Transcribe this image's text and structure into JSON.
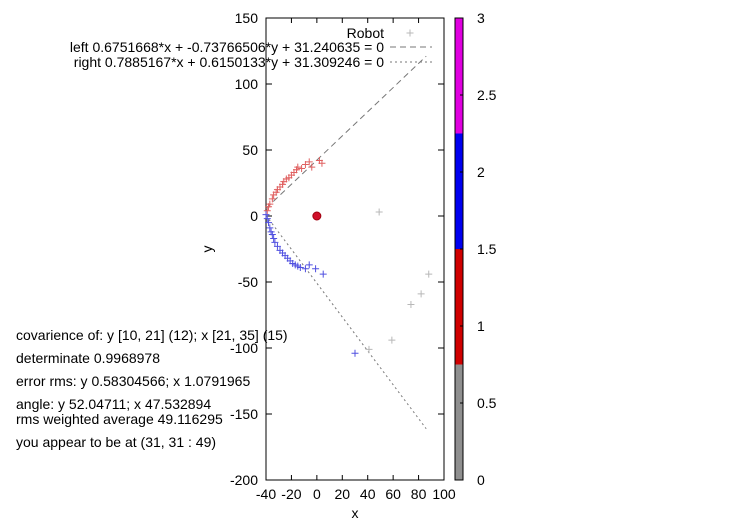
{
  "chart_data": {
    "type": "scatter",
    "xlabel": "x",
    "ylabel": "y",
    "xlim": [
      -40,
      100
    ],
    "ylim": [
      -200,
      150
    ],
    "xticks": [
      -40,
      -20,
      0,
      20,
      40,
      60,
      80,
      100
    ],
    "yticks": [
      150,
      100,
      50,
      0,
      -50,
      -100,
      -150,
      -200
    ],
    "colorbar": {
      "range": [
        0,
        3
      ],
      "ticks": [
        "3",
        "2.5",
        "2",
        "1.5",
        "1",
        "0.5",
        "0"
      ],
      "bands": [
        {
          "from": 0,
          "to": 0.75,
          "color": "#8f8f8f"
        },
        {
          "from": 0.75,
          "to": 1.5,
          "color": "#d00000"
        },
        {
          "from": 1.5,
          "to": 2.25,
          "color": "#0000f0"
        },
        {
          "from": 2.25,
          "to": 3,
          "color": "#e000e0"
        }
      ]
    },
    "legend": [
      {
        "label": "Robot",
        "style": "marker"
      },
      {
        "label": "left 0.6751668*x + -0.73766506*y + 31.240635 = 0",
        "style": "dashed"
      },
      {
        "label": "right 0.7885167*x + 0.6150133*y + 31.309246 = 0",
        "style": "dotted"
      }
    ],
    "lines": [
      {
        "name": "left",
        "a": 0.6751668,
        "b": -0.73766506,
        "c": 31.240635,
        "x_range": [
          -40,
          86
        ],
        "color": "#777777",
        "dash": "6,4"
      },
      {
        "name": "right",
        "a": 0.7885167,
        "b": 0.6150133,
        "c": 31.309246,
        "x_range": [
          -40,
          86
        ],
        "color": "#777777",
        "dash": "2,3"
      }
    ],
    "robot_point": {
      "x": 0,
      "y": 0,
      "color": "#d0102a"
    },
    "series": [
      {
        "name": "left-points",
        "color": "#e06060",
        "points": [
          [
            -39,
            4
          ],
          [
            -38,
            7
          ],
          [
            -37,
            9
          ],
          [
            -35,
            13
          ],
          [
            -34,
            16
          ],
          [
            -32,
            18
          ],
          [
            -31,
            20
          ],
          [
            -29,
            22
          ],
          [
            -27,
            24
          ],
          [
            -26,
            26
          ],
          [
            -24,
            28
          ],
          [
            -22,
            29
          ],
          [
            -20,
            31
          ],
          [
            -18,
            33
          ],
          [
            -16,
            35
          ],
          [
            -15,
            37
          ],
          [
            -12,
            36
          ],
          [
            -9,
            39
          ],
          [
            -6,
            41
          ],
          [
            -4,
            37
          ],
          [
            2,
            42
          ],
          [
            4,
            40
          ]
        ]
      },
      {
        "name": "right-points",
        "color": "#5050e0",
        "points": [
          [
            -40,
            1
          ],
          [
            -39,
            -2
          ],
          [
            -38,
            -5
          ],
          [
            -37,
            -9
          ],
          [
            -36,
            -12
          ],
          [
            -35,
            -14
          ],
          [
            -34,
            -17
          ],
          [
            -33,
            -20
          ],
          [
            -31,
            -23
          ],
          [
            -29,
            -26
          ],
          [
            -27,
            -28
          ],
          [
            -25,
            -30
          ],
          [
            -23,
            -32
          ],
          [
            -21,
            -34
          ],
          [
            -19,
            -36
          ],
          [
            -17,
            -37
          ],
          [
            -15,
            -38
          ],
          [
            -13,
            -39
          ],
          [
            -9,
            -40
          ],
          [
            -6,
            -37
          ],
          [
            -1,
            -40
          ],
          [
            5,
            -44
          ],
          [
            30,
            -104
          ]
        ]
      },
      {
        "name": "robot-other",
        "color": "#b8b8b8",
        "points": [
          [
            49,
            3
          ],
          [
            88,
            -44
          ],
          [
            82,
            -59
          ],
          [
            74,
            -67
          ],
          [
            59,
            -94
          ],
          [
            41,
            -101
          ]
        ]
      }
    ]
  },
  "info": {
    "covariance": "covarience of: y [10, 21] (12); x [21, 35] (15)",
    "determinate": "determinate 0.9968978",
    "error_rms": "error rms: y 0.58304566; x 1.0791965",
    "angle": "angle: y 52.04711; x 47.532894",
    "rms_weighted": "rms weighted average 49.116295",
    "position": "you appear to be at (31, 31 : 49)"
  }
}
